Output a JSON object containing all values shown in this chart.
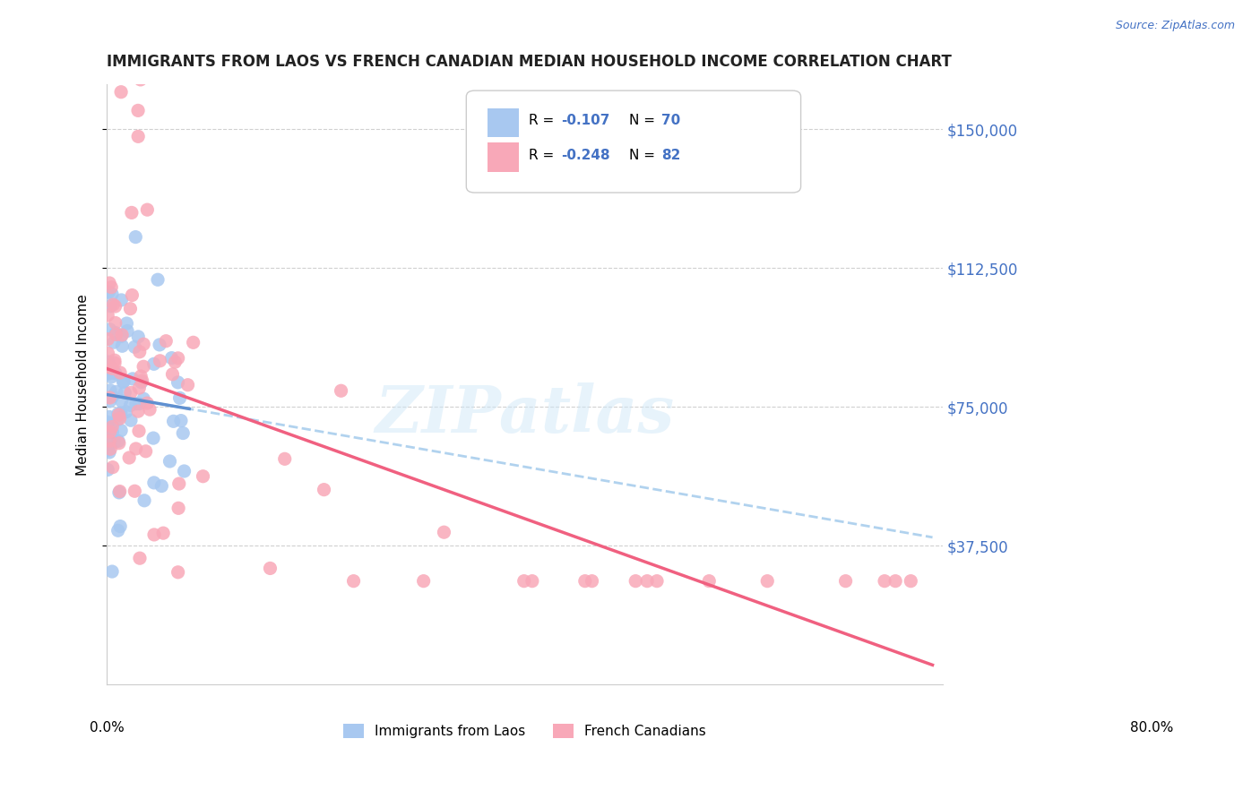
{
  "title": "IMMIGRANTS FROM LAOS VS FRENCH CANADIAN MEDIAN HOUSEHOLD INCOME CORRELATION CHART",
  "source": "Source: ZipAtlas.com",
  "ylabel": "Median Household Income",
  "ytick_vals": [
    37500,
    75000,
    112500,
    150000
  ],
  "ytick_labels": [
    "$37,500",
    "$75,000",
    "$112,500",
    "$150,000"
  ],
  "ylim": [
    0,
    162000
  ],
  "xlim": [
    0,
    0.8
  ],
  "legend_r1": "R = -0.107",
  "legend_n1": "N = 70",
  "legend_r2": "R = -0.248",
  "legend_n2": "N = 82",
  "color_laos": "#a8c8f0",
  "color_french": "#f8a8b8",
  "color_laos_line": "#6090d0",
  "color_french_line": "#f06080",
  "color_laos_dash": "#90c0e8",
  "watermark": "ZIPatlas",
  "title_color": "#222222",
  "source_color": "#4472c4",
  "ytick_color": "#4472c4"
}
